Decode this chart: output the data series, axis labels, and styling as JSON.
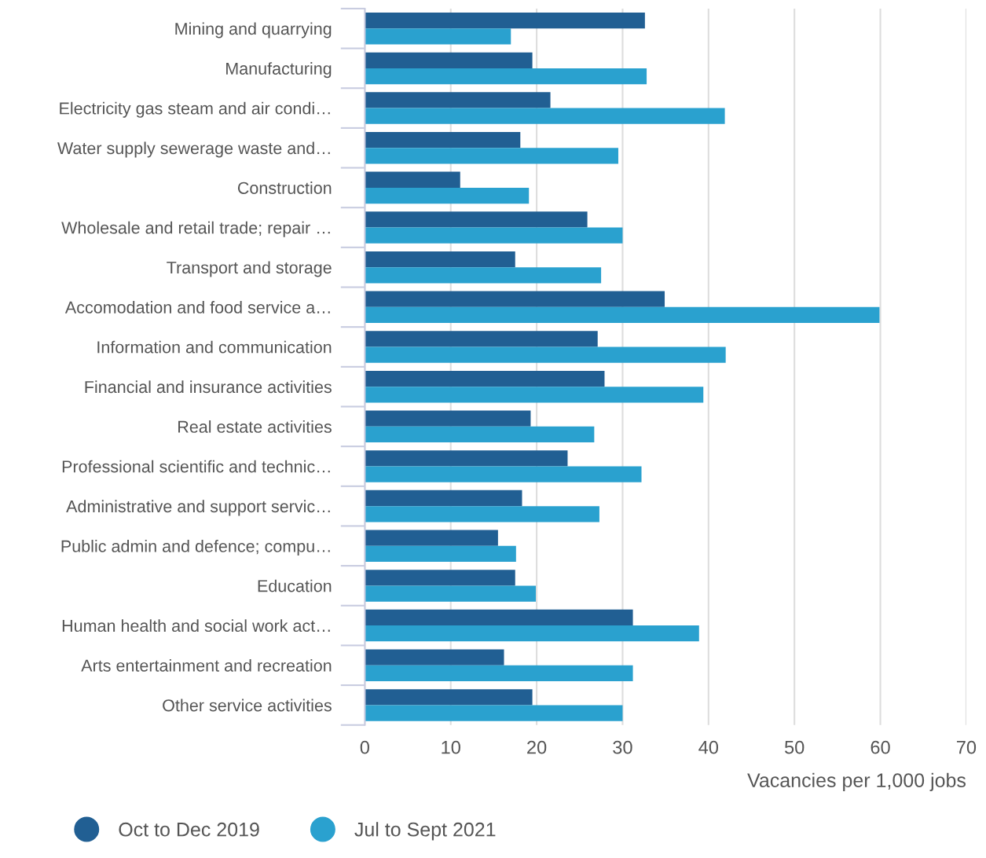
{
  "chart_data": {
    "type": "bar",
    "orientation": "horizontal",
    "xlabel": "Vacancies per 1,000 jobs",
    "categories": [
      "Mining and quarrying",
      "Manufacturing",
      "Electricity gas steam and air condi…",
      "Water supply sewerage waste and…",
      "Construction",
      "Wholesale and retail trade; repair …",
      "Transport and storage",
      "Accomodation and food service a…",
      "Information and communication",
      "Financial and insurance activities",
      "Real estate activities",
      "Professional scientific and technic…",
      "Administrative and support servic…",
      "Public admin and defence; compu…",
      "Education",
      "Human health and social work act…",
      "Arts entertainment and recreation",
      "Other service activities"
    ],
    "series": [
      {
        "name": "Oct to Dec 2019",
        "color": "#215f93",
        "values": [
          32.6,
          19.5,
          21.6,
          18.1,
          11.1,
          25.9,
          17.5,
          34.9,
          27.1,
          27.9,
          19.3,
          23.6,
          18.3,
          15.5,
          17.5,
          31.2,
          16.2,
          19.5
        ]
      },
      {
        "name": "Jul to Sept 2021",
        "color": "#2aa1cf",
        "values": [
          17.0,
          32.8,
          41.9,
          29.5,
          19.1,
          30.0,
          27.5,
          59.9,
          42.0,
          39.4,
          26.7,
          32.2,
          27.3,
          17.6,
          19.9,
          38.9,
          31.2,
          30.0
        ]
      }
    ],
    "xlim": [
      0,
      70
    ],
    "xticks": [
      0,
      10,
      20,
      30,
      40,
      50,
      60,
      70
    ],
    "grid": "x",
    "legend": "bottom left"
  }
}
